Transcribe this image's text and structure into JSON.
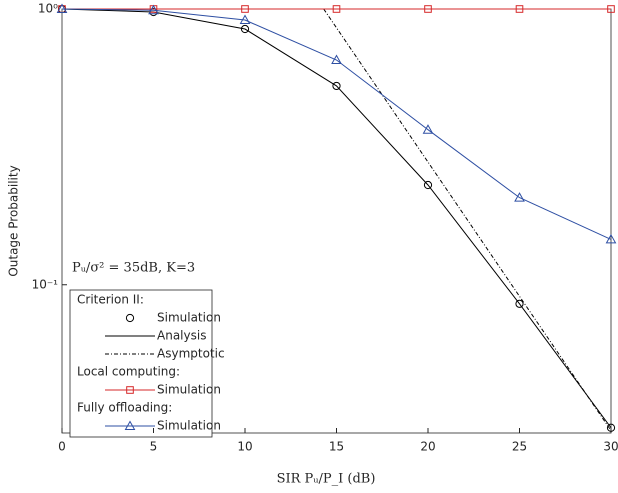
{
  "chart_data": {
    "type": "line",
    "xlabel": "SIR Pᵤ/P_I (dB)",
    "ylabel": "Outage Probability",
    "annotation": "Pᵤ/σ² = 35dB, K=3",
    "xlim": [
      0,
      30
    ],
    "xticks": [
      0,
      5,
      10,
      15,
      20,
      25,
      30
    ],
    "ylim": [
      0.029,
      1
    ],
    "log_y": true,
    "yticks": [
      {
        "value": 1,
        "label": "10⁰"
      },
      {
        "value": 0.1,
        "label": "10⁻¹"
      }
    ],
    "legend_headers": [
      "Criterion II:",
      "Local computing:",
      "Fully offloading:"
    ],
    "series": [
      {
        "name": "Simulation",
        "color": "#000000",
        "marker": "circle",
        "line": "none",
        "x": [
          0,
          5,
          10,
          15,
          20,
          25,
          30
        ],
        "values": [
          1,
          0.975,
          0.846,
          0.526,
          0.23,
          0.0853,
          0.0303
        ]
      },
      {
        "name": "Analysis",
        "color": "#000000",
        "marker": "none",
        "line": "solid",
        "x": [
          0,
          5,
          10,
          15,
          20,
          25,
          30
        ],
        "values": [
          1,
          0.975,
          0.846,
          0.526,
          0.23,
          0.0853,
          0.0303
        ]
      },
      {
        "name": "Asymptotic",
        "color": "#000000",
        "marker": "none",
        "line": "dashdot",
        "x": [
          14.3,
          30
        ],
        "values": [
          1,
          0.0296
        ]
      },
      {
        "name": "Simulation",
        "color": "#d62728",
        "marker": "square",
        "line": "solid",
        "x": [
          0,
          5,
          10,
          15,
          20,
          25,
          30
        ],
        "values": [
          1,
          1,
          1,
          1,
          1,
          1,
          1
        ]
      },
      {
        "name": "Simulation",
        "color": "#2e4fa3",
        "marker": "triangle",
        "line": "solid",
        "x": [
          0,
          5,
          10,
          15,
          20,
          25,
          30
        ],
        "values": [
          1,
          0.99,
          0.912,
          0.653,
          0.365,
          0.207,
          0.146
        ]
      }
    ]
  }
}
